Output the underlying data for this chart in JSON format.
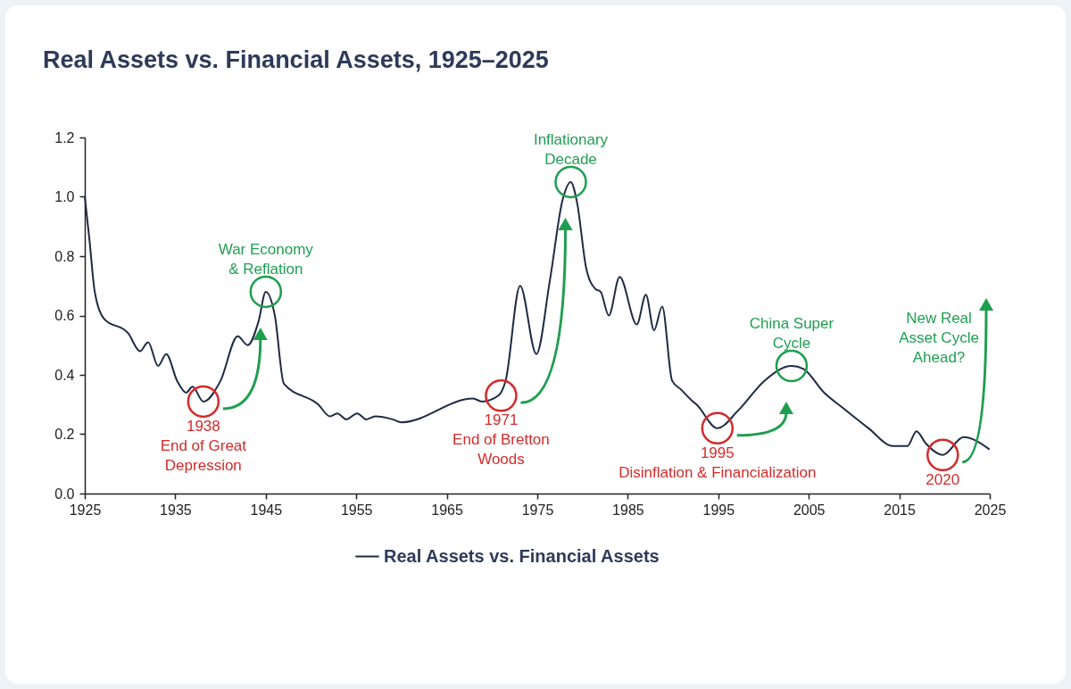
{
  "chart_data": {
    "type": "line",
    "title": "Real Assets vs. Financial Assets, 1925–2025",
    "x": [
      1925,
      1925.5,
      1926.1,
      1927.1,
      1929.8,
      1931.1,
      1932,
      1933.1,
      1934,
      1935.2,
      1936.2,
      1936.9,
      1938.1,
      1940,
      1941.9,
      1943,
      1944.2,
      1945,
      1946,
      1947,
      1950.8,
      1952.1,
      1952.9,
      1953.9,
      1955.1,
      1956.1,
      1957.1,
      1959,
      1960,
      1967.9,
      1968.9,
      1970.7,
      1971.5,
      1973.1,
      1974.9,
      1976.4,
      1977.8,
      1978.7,
      1979.4,
      1980.4,
      1981.4,
      1982,
      1982.9,
      1984.1,
      1986,
      1987,
      1987.9,
      1988.8,
      1989.9,
      1990.9,
      1992.2,
      1992.6,
      1994.9,
      1997.2,
      2000.1,
      2003.1,
      2004.4,
      2006.7,
      2008.7,
      2011.6,
      2014.3,
      2015.9,
      2016.9,
      2017.9,
      2019.8,
      2022.1,
      2024.9
    ],
    "series": [
      {
        "name": "Real Assets vs. Financial Assets",
        "color": "#1f2a44",
        "values": [
          1.0,
          0.86,
          0.68,
          0.59,
          0.54,
          0.48,
          0.51,
          0.43,
          0.47,
          0.38,
          0.34,
          0.36,
          0.31,
          0.38,
          0.53,
          0.5,
          0.58,
          0.68,
          0.6,
          0.37,
          0.3,
          0.26,
          0.27,
          0.25,
          0.27,
          0.25,
          0.26,
          0.25,
          0.24,
          0.32,
          0.31,
          0.33,
          0.38,
          0.7,
          0.47,
          0.72,
          0.99,
          1.05,
          0.98,
          0.76,
          0.69,
          0.68,
          0.6,
          0.73,
          0.57,
          0.67,
          0.55,
          0.63,
          0.38,
          0.35,
          0.31,
          0.3,
          0.22,
          0.28,
          0.38,
          0.43,
          0.42,
          0.34,
          0.29,
          0.22,
          0.16,
          0.16,
          0.21,
          0.17,
          0.13,
          0.19,
          0.15
        ]
      }
    ],
    "xlim": [
      1925,
      2025
    ],
    "xticks": [
      1925,
      1935,
      1945,
      1955,
      1965,
      1975,
      1985,
      1995,
      2005,
      2015,
      2025
    ],
    "ylim": [
      0,
      1.2
    ],
    "yticks": [
      {
        "value": 0,
        "label": "0.0"
      },
      0.2,
      0.4,
      0.6,
      0.8,
      {
        "value": 1,
        "label": "1.0"
      },
      1.2
    ],
    "grid": false,
    "legend": "bottom",
    "annotations": [
      {
        "text": "1938\nEnd of Great\nDepression",
        "x": 1938.1,
        "y": 0.31
      },
      {
        "text": "War Economy\n& Reflation",
        "x": 1945,
        "y": 0.68
      },
      {
        "text": "1971\nEnd of Bretton\nWoods",
        "x": 1971,
        "y": 0.33
      },
      {
        "text": "Inflationary\nDecade",
        "x": 1978.7,
        "y": 1.05
      },
      {
        "text": "1995\nDisinflation & Financialization",
        "x": 1994.9,
        "y": 0.22
      },
      {
        "text": "China Super\nCycle",
        "x": 2003.1,
        "y": 0.43
      },
      {
        "text": "2020",
        "x": 2019.8,
        "y": 0.13
      },
      "New Real\nAsset Cycle\nAhead?"
    ]
  }
}
